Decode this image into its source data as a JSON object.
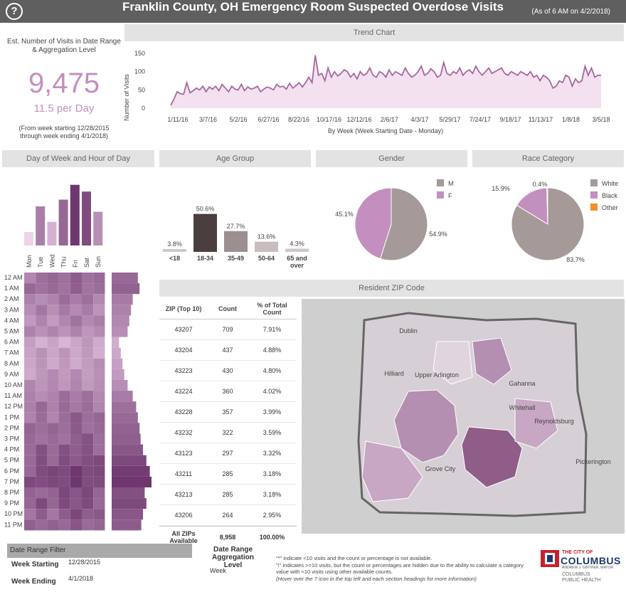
{
  "header": {
    "title": "Franklin County, OH Emergency Room Suspected Overdose Visits",
    "as_of": "(As of 6 AM on 4/2/2018)",
    "help_icon": "question-circle-icon"
  },
  "kpi": {
    "label": "Est. Number of Visits in Date Range & Aggregation Level",
    "value": "9,475",
    "rate": "11.5 per Day",
    "range_line1": "(From week starting 12/28/2015",
    "range_line2": "through week ending 4/1/2018)"
  },
  "sections": {
    "trend": "Trend Chart",
    "dow": "Day of Week and Hour of Day",
    "age": "Age Group",
    "gender": "Gender",
    "race": "Race Category",
    "zip": "Resident ZIP Code"
  },
  "colors": {
    "header_bg": "#5f5f5f",
    "accent": "#c38fbf",
    "trend_line": "#a8679e",
    "trend_fill": "#f3e1f0",
    "male": "#a59a98",
    "female": "#c38fbf",
    "white": "#a59a98",
    "black": "#c38fbf",
    "other": "#f28e2b"
  },
  "chart_data": [
    {
      "type": "area",
      "title": "Trend Chart",
      "xlabel": "By Week (Week Starting Date - Monday)",
      "ylabel": "Number of Visits",
      "ylim": [
        0,
        150
      ],
      "yticks": [
        0,
        50,
        100,
        150
      ],
      "x_tick_labels": [
        "1/11/16",
        "3/7/16",
        "5/2/16",
        "6/27/16",
        "8/22/16",
        "10/17/16",
        "12/12/16",
        "2/6/17",
        "4/3/17",
        "5/29/17",
        "7/24/17",
        "9/18/17",
        "11/13/17",
        "1/8/18",
        "3/5/18"
      ],
      "values": [
        8,
        25,
        45,
        40,
        38,
        70,
        42,
        48,
        55,
        50,
        60,
        45,
        58,
        52,
        60,
        48,
        65,
        55,
        45,
        60,
        52,
        50,
        65,
        48,
        58,
        52,
        55,
        60,
        45,
        52,
        58,
        55,
        50,
        65,
        58,
        60,
        52,
        68,
        55,
        62,
        70,
        58,
        70,
        85,
        70,
        145,
        90,
        95,
        75,
        110,
        85,
        100,
        88,
        95,
        105,
        100,
        85,
        95,
        80,
        100,
        90,
        95,
        110,
        90,
        85,
        100,
        95,
        85,
        105,
        90,
        100,
        95,
        90,
        110,
        95,
        85,
        90,
        100,
        115,
        90,
        95,
        108,
        100,
        85,
        90,
        125,
        95,
        90,
        100,
        95,
        110,
        90,
        100,
        105,
        95,
        115,
        100,
        90,
        100,
        110,
        95,
        100,
        105,
        110,
        95,
        90,
        100,
        95,
        90,
        100,
        95,
        90,
        100,
        85,
        90,
        75,
        90,
        85,
        75,
        55,
        60,
        75,
        70,
        90,
        85,
        60,
        80,
        70,
        75,
        115,
        90,
        110,
        85,
        90,
        90
      ]
    },
    {
      "type": "bar",
      "title": "Day of Week",
      "categories": [
        "Mon",
        "Tue",
        "Wed",
        "Thu",
        "Fri",
        "Sat",
        "Sun"
      ],
      "values": [
        1100,
        1480,
        1250,
        1580,
        1800,
        1700,
        1400
      ],
      "ylim": [
        900,
        1850
      ]
    },
    {
      "type": "heatmap",
      "title": "Hour of Day",
      "rows": [
        "12 AM",
        "1 AM",
        "2 AM",
        "3 AM",
        "4 AM",
        "5 AM",
        "6 AM",
        "7 AM",
        "8 AM",
        "9 AM",
        "10 AM",
        "11 AM",
        "12 PM",
        "1 PM",
        "2 PM",
        "3 PM",
        "4 PM",
        "5 PM",
        "6 PM",
        "7 PM",
        "8 PM",
        "9 PM",
        "10 PM",
        "11 PM"
      ],
      "columns": [
        "Mon",
        "Tue",
        "Wed",
        "Thu",
        "Fri",
        "Sat",
        "Sun"
      ],
      "row_totals": [
        0.6,
        0.65,
        0.45,
        0.4,
        0.35,
        0.3,
        0.05,
        0.1,
        0.15,
        0.2,
        0.3,
        0.45,
        0.55,
        0.6,
        0.65,
        0.68,
        0.75,
        0.85,
        0.95,
        1.0,
        0.8,
        0.85,
        0.75,
        0.7
      ]
    },
    {
      "type": "bar",
      "title": "Age Group",
      "categories": [
        "<18",
        "18-34",
        "35-49",
        "50-64",
        "65 and over"
      ],
      "values": [
        3.8,
        50.6,
        27.7,
        13.6,
        4.3
      ],
      "data_labels": [
        "3.8%",
        "50.6%",
        "27.7%",
        "13.6%",
        "4.3%"
      ],
      "ylim": [
        0,
        55
      ]
    },
    {
      "type": "pie",
      "title": "Gender",
      "labels": [
        "M",
        "F"
      ],
      "values": [
        54.9,
        45.1
      ],
      "data_labels": [
        "54.9%",
        "45.1%"
      ],
      "legend": "top-right"
    },
    {
      "type": "pie",
      "title": "Race Category",
      "labels": [
        "White",
        "Black",
        "Other"
      ],
      "values": [
        83.7,
        15.9,
        0.4
      ],
      "data_labels": [
        "83.7%",
        "15.9%",
        "0.4%"
      ],
      "legend": "top-right"
    }
  ],
  "zip_table": {
    "headers": [
      "ZIP (Top 10)",
      "Count",
      "% of Total Count"
    ],
    "rows": [
      [
        "43207",
        "709",
        "7.91%"
      ],
      [
        "43204",
        "437",
        "4.88%"
      ],
      [
        "43223",
        "430",
        "4.80%"
      ],
      [
        "43224",
        "360",
        "4.02%"
      ],
      [
        "43228",
        "357",
        "3.99%"
      ],
      [
        "43232",
        "322",
        "3.59%"
      ],
      [
        "43123",
        "297",
        "3.32%"
      ],
      [
        "43211",
        "285",
        "3.18%"
      ],
      [
        "43213",
        "285",
        "3.18%"
      ],
      [
        "43206",
        "264",
        "2.95%"
      ]
    ],
    "total": [
      "All ZIPs Available",
      "8,958",
      "100.00%"
    ]
  },
  "map": {
    "labels": [
      "Dublin",
      "Hilliard",
      "Upper Arlington",
      "Gahanna",
      "Whitehall",
      "Reynoldsburg",
      "Grove City",
      "Pickerington"
    ]
  },
  "filters": {
    "title": "Date Range Filter",
    "week_starting_label": "Week Starting",
    "week_starting_value": "12/28/2015",
    "week_ending_label": "Week Ending",
    "week_ending_value": "4/1/2018",
    "aggregation_label": "Date Range Aggregation Level",
    "aggregation_value": "Week"
  },
  "notes": {
    "line1": "\"*\" indicate <10 visits and the count or percentage is not available.",
    "line2": "\"!\" indicates >=10 visits, but the count or percentages are hidden due to the ability to calculate a category value with <10 visits using other available counts.",
    "line3": "(Hover over the ? icon in the top left and each section headings for more information)"
  },
  "logo": {
    "city": "THE CITY OF",
    "name": "COLUMBUS",
    "mayor": "ANDREW J. GINTHER, MAYOR",
    "dept1": "COLUMBUS",
    "dept2": "PUBLIC HEALTH"
  }
}
